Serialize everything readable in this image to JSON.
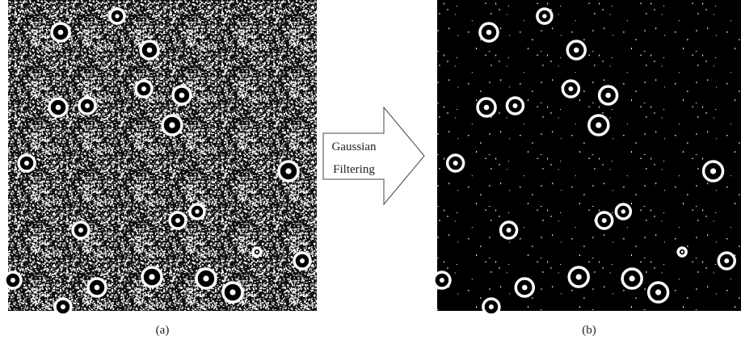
{
  "arrow": {
    "lines": [
      "Gaussian",
      "Filtering"
    ]
  },
  "panels": [
    {
      "label": "(a)"
    },
    {
      "label": "(b)"
    }
  ]
}
